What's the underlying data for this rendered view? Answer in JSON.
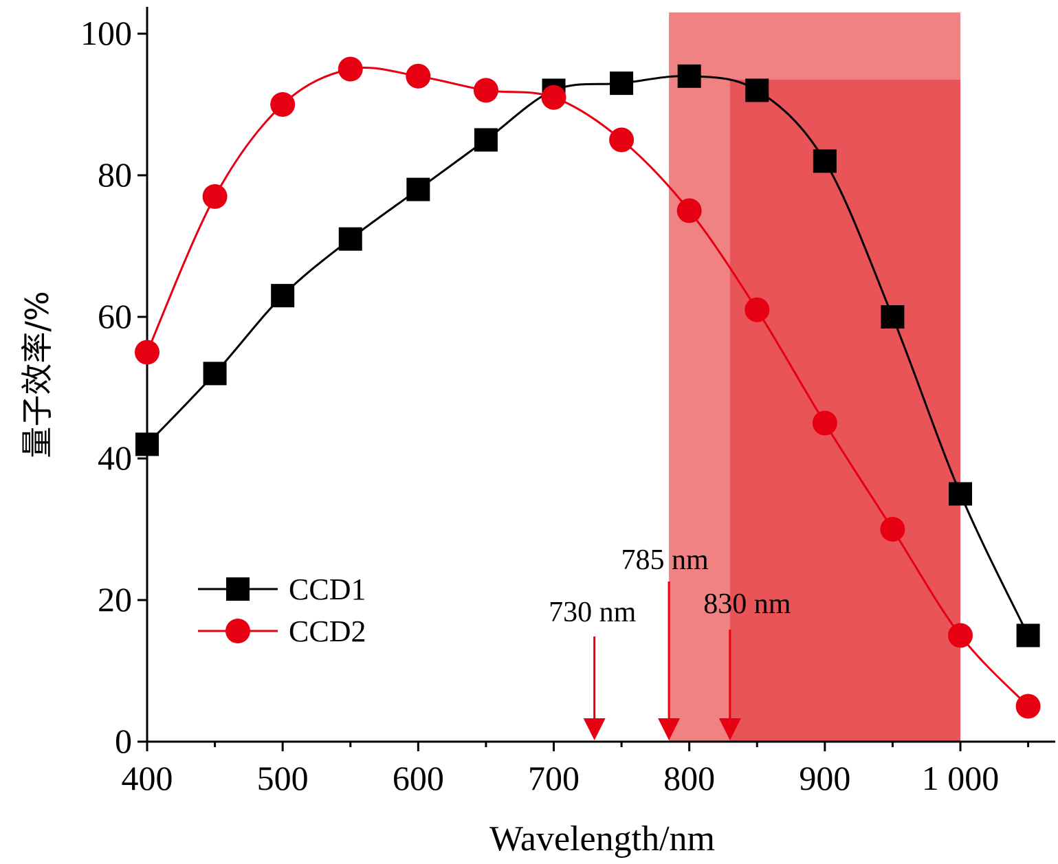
{
  "chart_data": {
    "type": "line",
    "xlabel": "Wavelength/nm",
    "ylabel": "量子效率/%",
    "xlim": [
      400,
      1070
    ],
    "ylim": [
      0,
      103
    ],
    "x_ticks": [
      400,
      500,
      600,
      700,
      800,
      900,
      1000
    ],
    "x_tick_labels": [
      "400",
      "500",
      "600",
      "700",
      "800",
      "900",
      "1 000"
    ],
    "y_ticks": [
      0,
      20,
      40,
      60,
      80,
      100
    ],
    "y_tick_labels": [
      "0",
      "20",
      "40",
      "60",
      "80",
      "100"
    ],
    "grid": false,
    "legend_position": "bottom-left",
    "series": [
      {
        "name": "CCD1",
        "marker": "square",
        "color": "#000000",
        "x": [
          400,
          450,
          500,
          550,
          600,
          650,
          700,
          750,
          800,
          850,
          900,
          950,
          1000,
          1050
        ],
        "y": [
          42,
          52,
          63,
          71,
          78,
          85,
          92,
          93,
          94,
          92,
          82,
          60,
          35,
          15
        ]
      },
      {
        "name": "CCD2",
        "marker": "circle",
        "color": "#e60012",
        "x": [
          400,
          450,
          500,
          550,
          600,
          650,
          700,
          750,
          800,
          850,
          900,
          950,
          1000,
          1050
        ],
        "y": [
          55,
          77,
          90,
          95,
          94,
          92,
          91,
          85,
          75,
          61,
          45,
          30,
          15,
          5
        ]
      }
    ],
    "shaded_regions": [
      {
        "x_start": 785,
        "x_end": 1000,
        "y_top": 103,
        "color": "#f08283"
      },
      {
        "x_start": 830,
        "x_end": 1000,
        "y_top": 93.5,
        "color": "#e85457"
      }
    ],
    "annotations": [
      {
        "label": "730 nm",
        "x": 730,
        "color": "#e60012"
      },
      {
        "label": "785 nm",
        "x": 785,
        "color": "#e60012"
      },
      {
        "label": "830 nm",
        "x": 830,
        "color": "#e60012"
      }
    ]
  }
}
